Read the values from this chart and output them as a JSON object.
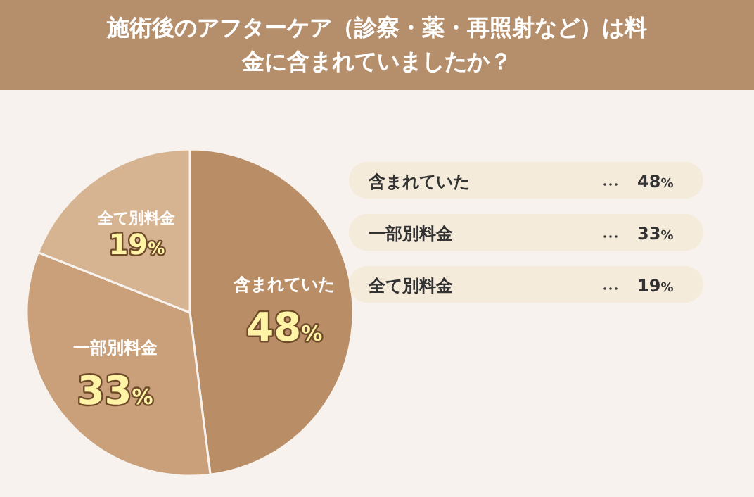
{
  "chart_data": {
    "type": "pie",
    "title": "施術後のアフターケア（診察・薬・再照射など）は料金に含まれていましたか？",
    "categories": [
      "含まれていた",
      "一部別料金",
      "全て別料金"
    ],
    "values": [
      48,
      33,
      19
    ],
    "colors": [
      "#b98e66",
      "#caa07a",
      "#d6b491"
    ],
    "value_labels": [
      "48%",
      "33%",
      "19%"
    ]
  }
}
